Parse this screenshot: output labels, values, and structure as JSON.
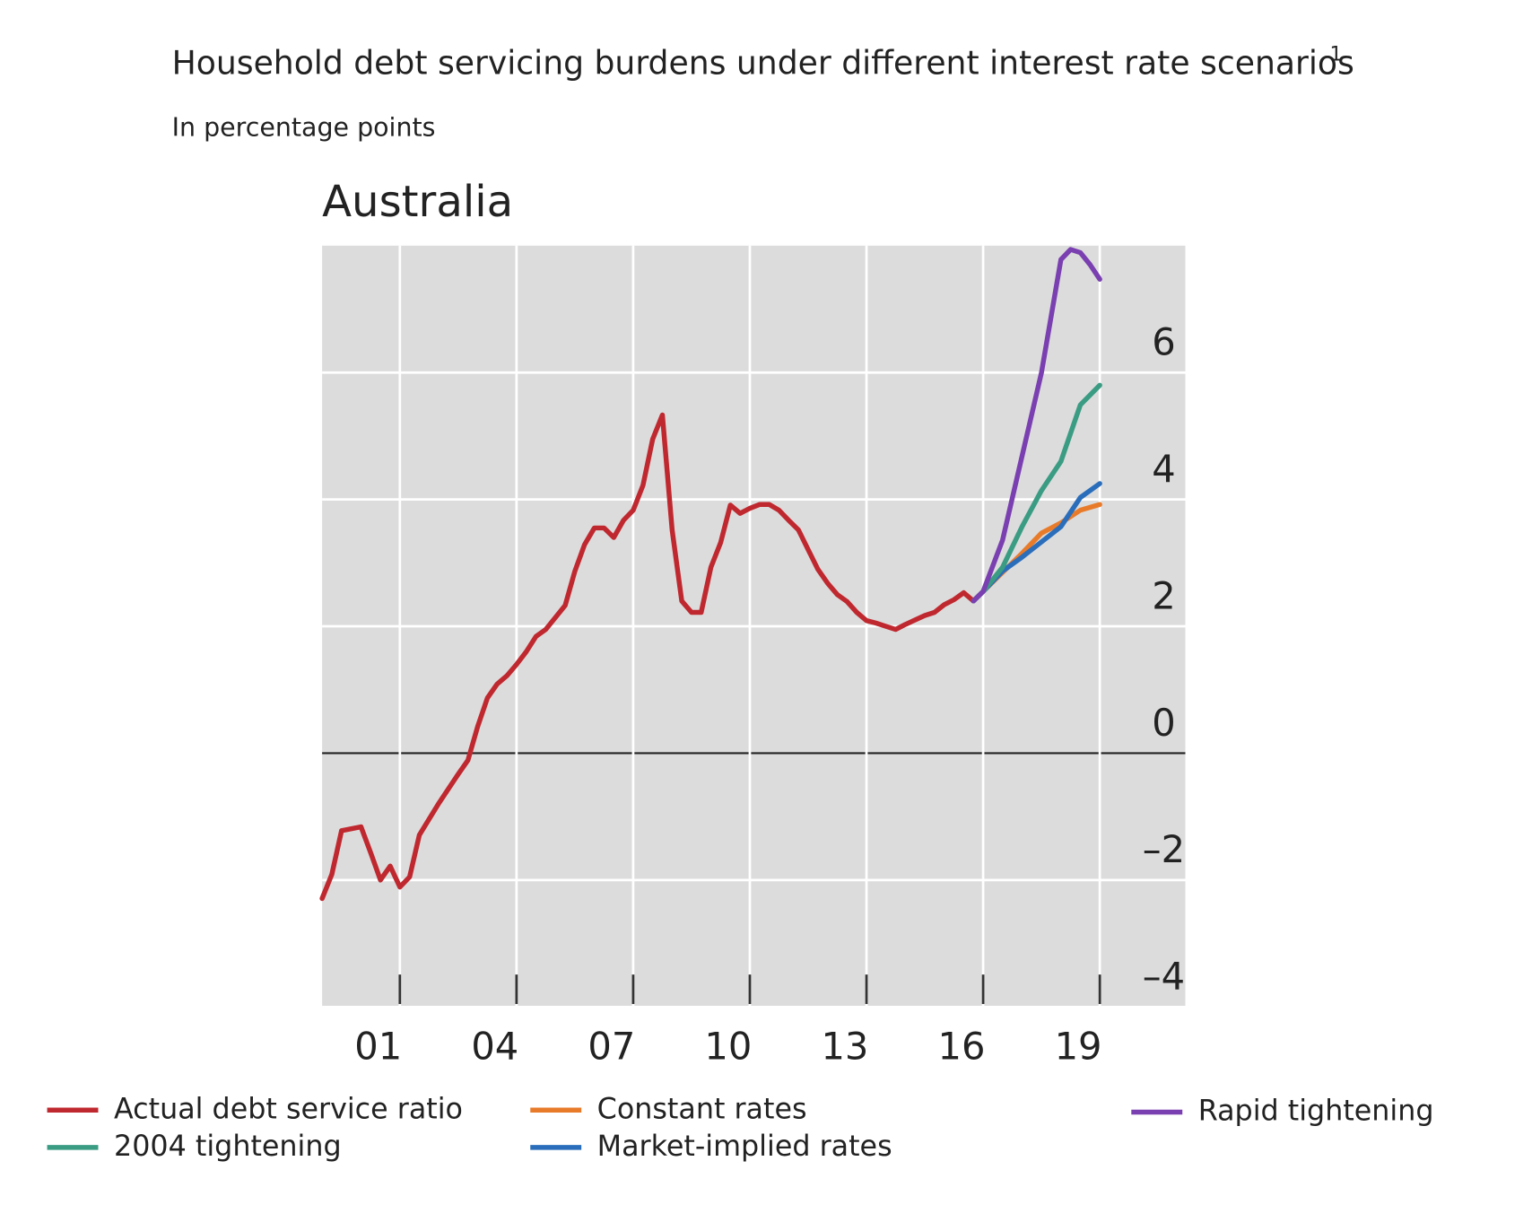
{
  "chart_data": {
    "type": "line",
    "title": "Household debt servicing burdens under different interest rate scenarios",
    "title_note": "1",
    "subtitle": "In percentage points",
    "panel_title": "Australia",
    "xlim": [
      1999,
      2021.2
    ],
    "xticks": [
      {
        "value": 2001,
        "label": "01"
      },
      {
        "value": 2004,
        "label": "04"
      },
      {
        "value": 2007,
        "label": "07"
      },
      {
        "value": 2010,
        "label": "10"
      },
      {
        "value": 2013,
        "label": "13"
      },
      {
        "value": 2016,
        "label": "16"
      },
      {
        "value": 2019,
        "label": "19"
      }
    ],
    "ylim": [
      -4,
      8
    ],
    "yticks": [
      {
        "value": -4,
        "label": "–4"
      },
      {
        "value": -2,
        "label": "–2"
      },
      0,
      2,
      4,
      6
    ],
    "grid": true,
    "series": [
      {
        "name": "Actual debt service ratio",
        "color": "#c0282f",
        "x": [
          1999.0,
          1999.25,
          1999.5,
          2000.0,
          2000.25,
          2000.5,
          2000.75,
          2001.0,
          2001.25,
          2001.5,
          2002.0,
          2002.5,
          2002.75,
          2003.0,
          2003.25,
          2003.5,
          2003.75,
          2004.0,
          2004.25,
          2004.5,
          2004.75,
          2005.25,
          2005.5,
          2005.75,
          2006.0,
          2006.25,
          2006.5,
          2006.75,
          2007.0,
          2007.25,
          2007.5,
          2007.75,
          2008.0,
          2008.25,
          2008.5,
          2008.75,
          2009.0,
          2009.25,
          2009.5,
          2009.75,
          2010.0,
          2010.25,
          2010.5,
          2010.75,
          2011.0,
          2011.25,
          2011.5,
          2011.75,
          2012.0,
          2012.25,
          2012.5,
          2012.75,
          2013.0,
          2013.25,
          2013.5,
          2013.75,
          2014.0,
          2014.5,
          2014.75,
          2015.0,
          2015.25,
          2015.5,
          2015.75
        ],
        "values": [
          -2.29,
          -1.91,
          -1.22,
          -1.16,
          -1.57,
          -2.0,
          -1.78,
          -2.11,
          -1.95,
          -1.29,
          -0.79,
          -0.33,
          -0.11,
          0.42,
          0.87,
          1.09,
          1.22,
          1.4,
          1.6,
          1.84,
          1.95,
          2.33,
          2.87,
          3.29,
          3.55,
          3.55,
          3.4,
          3.67,
          3.83,
          4.22,
          4.95,
          5.33,
          3.52,
          2.4,
          2.22,
          2.22,
          2.93,
          3.32,
          3.91,
          3.78,
          3.86,
          3.92,
          3.92,
          3.83,
          3.67,
          3.52,
          3.21,
          2.9,
          2.68,
          2.5,
          2.39,
          2.22,
          2.09,
          2.05,
          2.0,
          1.95,
          2.03,
          2.17,
          2.22,
          2.34,
          2.42,
          2.53,
          2.4
        ]
      },
      {
        "name": "2004 tightening",
        "color": "#3a9c83",
        "x": [
          2015.75,
          2016.0,
          2016.5,
          2017.0,
          2017.5,
          2018.0,
          2018.5,
          2019.0
        ],
        "values": [
          2.4,
          2.55,
          2.93,
          3.57,
          4.14,
          4.6,
          5.49,
          5.8
        ]
      },
      {
        "name": "Constant rates",
        "color": "#e87b2a",
        "x": [
          2015.75,
          2016.0,
          2016.5,
          2017.0,
          2017.5,
          2018.0,
          2018.5,
          2019.0
        ],
        "values": [
          2.4,
          2.55,
          2.85,
          3.15,
          3.47,
          3.63,
          3.83,
          3.92
        ]
      },
      {
        "name": "Market-implied rates",
        "color": "#2a6ebb",
        "x": [
          2015.75,
          2016.0,
          2016.5,
          2017.0,
          2017.5,
          2018.0,
          2018.5,
          2019.0
        ],
        "values": [
          2.4,
          2.55,
          2.87,
          3.09,
          3.33,
          3.57,
          4.03,
          4.25
        ]
      },
      {
        "name": "Rapid tightening",
        "color": "#7a3fb0",
        "x": [
          2015.75,
          2016.0,
          2016.5,
          2017.0,
          2017.5,
          2018.0,
          2018.25,
          2018.5,
          2018.75,
          2019.0
        ],
        "values": [
          2.4,
          2.55,
          3.36,
          4.68,
          6.0,
          7.78,
          7.94,
          7.89,
          7.7,
          7.47
        ]
      }
    ]
  }
}
